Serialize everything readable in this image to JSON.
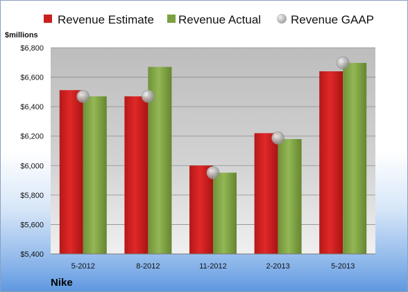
{
  "chart_data": {
    "type": "bar",
    "company": "Nike",
    "unit_label": "$millions",
    "categories": [
      "5-2012",
      "8-2012",
      "11-2012",
      "2-2013",
      "5-2013"
    ],
    "series": [
      {
        "name": "Revenue Estimate",
        "kind": "bar",
        "color": "#cc1f1f",
        "values": [
          6512,
          6470,
          6000,
          6220,
          6640
        ]
      },
      {
        "name": "Revenue Actual",
        "kind": "bar",
        "color": "#7da043",
        "values": [
          6470,
          6670,
          5952,
          6180,
          6697
        ]
      },
      {
        "name": "Revenue GAAP",
        "kind": "marker",
        "color": "#b0b0b0",
        "values": [
          6470,
          6470,
          5952,
          6187,
          6697
        ]
      }
    ],
    "ylim": [
      5400,
      6800
    ],
    "yticks": [
      "$5,400",
      "$5,600",
      "$5,800",
      "$6,000",
      "$6,200",
      "$6,400",
      "$6,600",
      "$6,800"
    ],
    "ytick_values": [
      5400,
      5600,
      5800,
      6000,
      6200,
      6400,
      6600,
      6800
    ],
    "legend_position": "top",
    "grid": true
  }
}
